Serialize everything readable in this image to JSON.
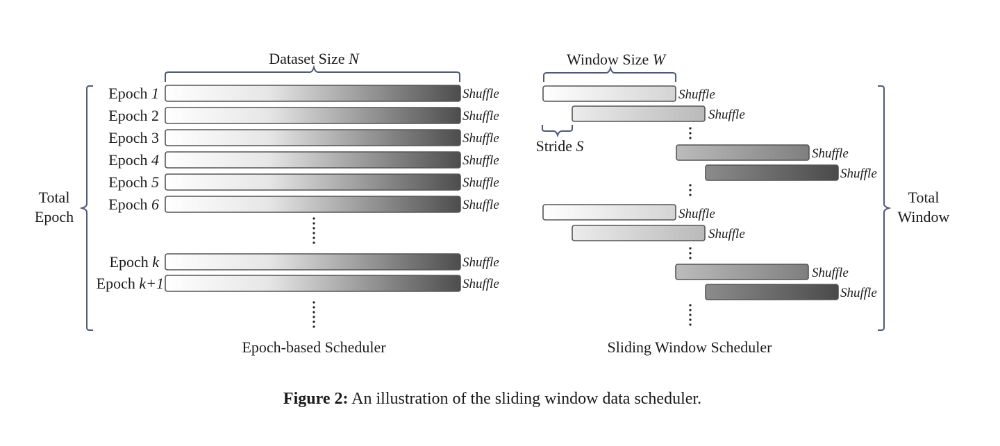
{
  "left_panel": {
    "dataset_size_prefix": "Dataset Size",
    "dataset_size_symbol": "N",
    "total_epoch_lines": [
      "Total",
      "Epoch"
    ],
    "epochs": [
      {
        "prefix": "Epoch",
        "index": "1"
      },
      {
        "prefix": "Epoch",
        "index": "2"
      },
      {
        "prefix": "Epoch",
        "index": "3"
      },
      {
        "prefix": "Epoch",
        "index": "4"
      },
      {
        "prefix": "Epoch",
        "index": "5"
      },
      {
        "prefix": "Epoch",
        "index": "6"
      },
      {
        "prefix": "Epoch",
        "index": "k"
      },
      {
        "prefix": "Epoch",
        "index": "k+1"
      }
    ],
    "shuffle_label": "Shuffle",
    "scheduler_title": "Epoch-based Scheduler"
  },
  "right_panel": {
    "window_size_prefix": "Window Size",
    "window_size_symbol": "W",
    "stride_prefix": "Stride",
    "stride_symbol": "S",
    "total_window_lines": [
      "Total",
      "Window"
    ],
    "shuffle_label": "Shuffle",
    "scheduler_title": "Sliding Window Scheduler"
  },
  "caption": {
    "label": "Figure 2:",
    "text": "An illustration of the sliding window data scheduler."
  }
}
